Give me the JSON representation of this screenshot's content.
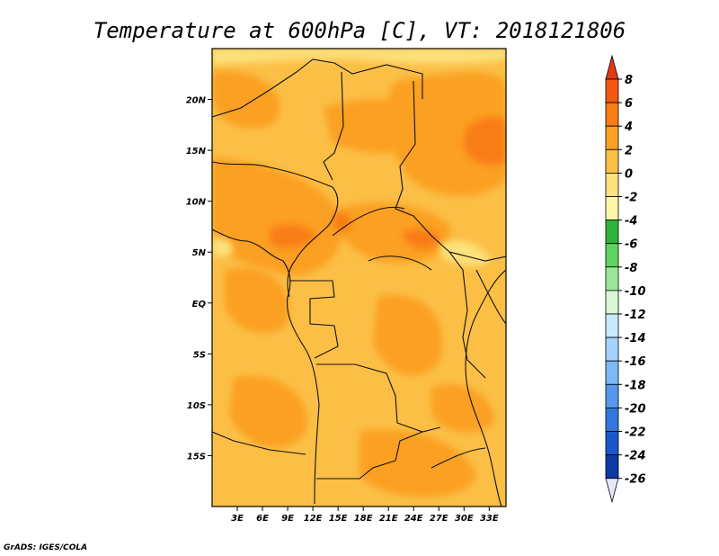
{
  "chart_data": {
    "type": "heatmap",
    "title": "Temperature at 600hPa [C], VT: 2018121806",
    "x_axis": {
      "label": "",
      "ticks": [
        "3E",
        "6E",
        "9E",
        "12E",
        "15E",
        "18E",
        "21E",
        "24E",
        "27E",
        "30E",
        "33E"
      ],
      "range": [
        0,
        35
      ]
    },
    "y_axis": {
      "label": "",
      "ticks": [
        "20N",
        "15N",
        "10N",
        "5N",
        "EQ",
        "5S",
        "10S",
        "15S"
      ],
      "range": [
        -20,
        25
      ]
    },
    "colorbar": {
      "labels": [
        "8",
        "6",
        "4",
        "2",
        "0",
        "-2",
        "-4",
        "-6",
        "-8",
        "-10",
        "-12",
        "-14",
        "-16",
        "-18",
        "-20",
        "-22",
        "-24",
        "-26"
      ],
      "colors": [
        "#e03a14",
        "#f25a12",
        "#f97d13",
        "#fba022",
        "#fbbf46",
        "#fde17c",
        "#fdf6a8",
        "#2fb33b",
        "#5ed35f",
        "#9be898",
        "#d9f7d6",
        "#c9e9ff",
        "#a4d3ff",
        "#7db8f7",
        "#5598ec",
        "#3477dd",
        "#1a58c9",
        "#0e3aa6",
        "#0a1a78",
        "#e6e6ff"
      ],
      "labels_between_bins": true
    },
    "field_summary": {
      "dominant_range_C": [
        0,
        2
      ],
      "warm_patches_C": [
        2,
        4
      ],
      "hot_spots_C": [
        4,
        6
      ],
      "cool_edges_C": [
        -2,
        0
      ]
    }
  },
  "footer": {
    "credit": "GrADS: IGES/COLA"
  }
}
